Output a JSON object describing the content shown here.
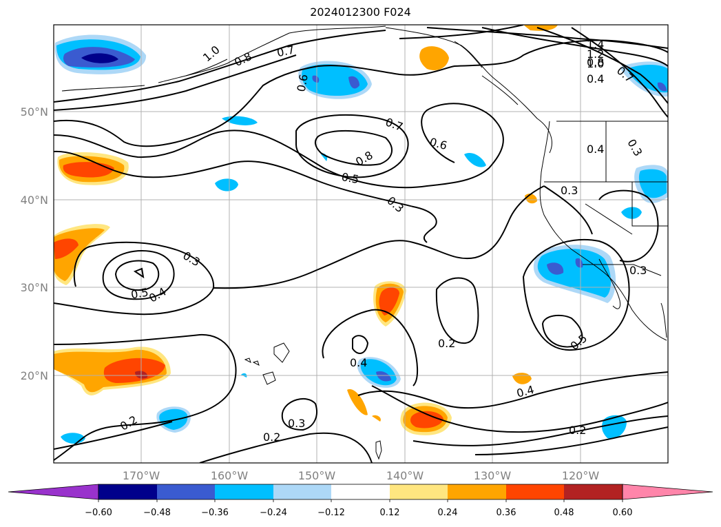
{
  "map": {
    "title": "2024012300 F024",
    "lat_labels": [
      "50°N",
      "40°N",
      "30°N",
      "20°N"
    ],
    "lon_labels": [
      "170°W",
      "160°W",
      "150°W",
      "140°W",
      "130°W",
      "120°W"
    ],
    "contour_labels": [
      "1.0",
      "0.8",
      "0.7",
      "0.6",
      "1.4",
      "1.2",
      "1.0",
      "0.8",
      "0.7",
      "0.4",
      "0.7",
      "0.8",
      "0.6",
      "0.5",
      "0.3",
      "0.4",
      "0.3",
      "0.3",
      "0.5",
      "0.4",
      "0.3",
      "0.2",
      "0.5",
      "0.4",
      "0.4",
      "0.2",
      "0.3",
      "0.2",
      "0.2",
      "0.3"
    ],
    "colors": {
      "neg_060": "#9932cc",
      "neg_048": "#00008b",
      "neg_036": "#3a5bd0",
      "neg_024": "#00bfff",
      "neg_012": "#add8f7",
      "zero": "#ffffff",
      "pos_012": "#ffe680",
      "pos_024": "#ffa500",
      "pos_036": "#ff4500",
      "pos_048": "#b22222",
      "pos_060": "#ff85aa"
    }
  },
  "colorbar": {
    "labels": [
      "−0.60",
      "−0.48",
      "−0.36",
      "−0.24",
      "−0.12",
      "0.12",
      "0.24",
      "0.36",
      "0.48",
      "0.60"
    ]
  }
}
